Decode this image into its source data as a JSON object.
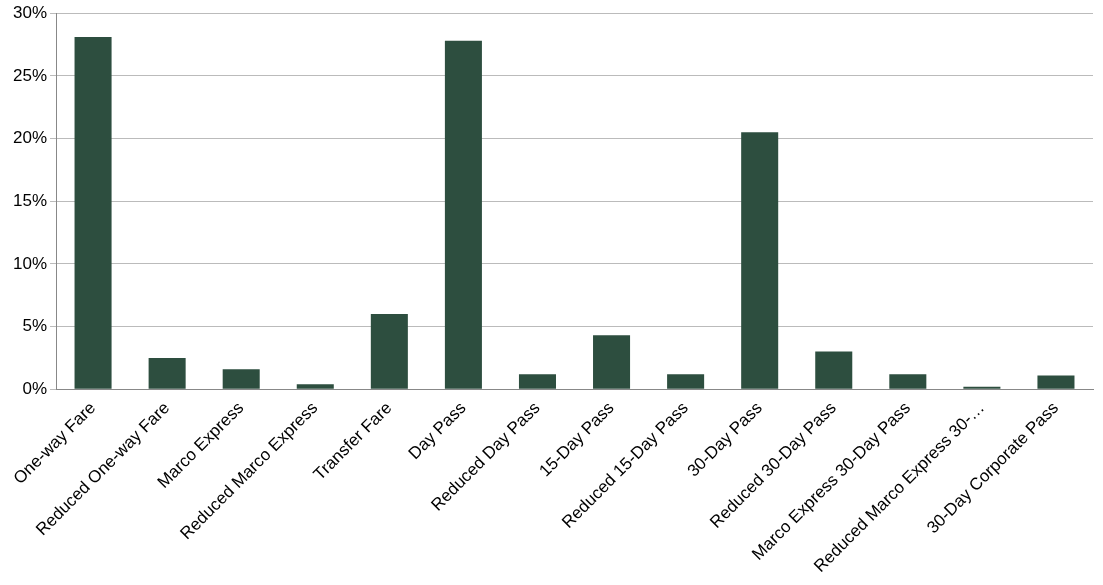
{
  "chart_data": {
    "type": "bar",
    "categories": [
      "One-way Fare",
      "Reduced One-way Fare",
      "Marco Express",
      "Reduced Marco Express",
      "Transfer Fare",
      "Day Pass",
      "Reduced Day Pass",
      "15-Day Pass",
      "Reduced 15-Day Pass",
      "30-Day Pass",
      "Reduced 30-Day Pass",
      "Marco Express 30-Day Pass",
      "Reduced Marco Express 30-…",
      "30-Day Corporate Pass"
    ],
    "values": [
      28.1,
      2.5,
      1.6,
      0.4,
      6.0,
      27.8,
      1.2,
      4.3,
      1.2,
      20.5,
      3.0,
      1.2,
      0.2,
      1.1
    ],
    "color": "#2d4e3f",
    "ylim": [
      0,
      30
    ],
    "yticks": [
      {
        "value": 0,
        "label": "0%"
      },
      {
        "value": 5,
        "label": "5%"
      },
      {
        "value": 10,
        "label": "10%"
      },
      {
        "value": 15,
        "label": "15%"
      },
      {
        "value": 20,
        "label": "20%"
      },
      {
        "value": 25,
        "label": "25%"
      },
      {
        "value": 30,
        "label": "30%"
      }
    ],
    "grid": "y",
    "legend": false
  }
}
